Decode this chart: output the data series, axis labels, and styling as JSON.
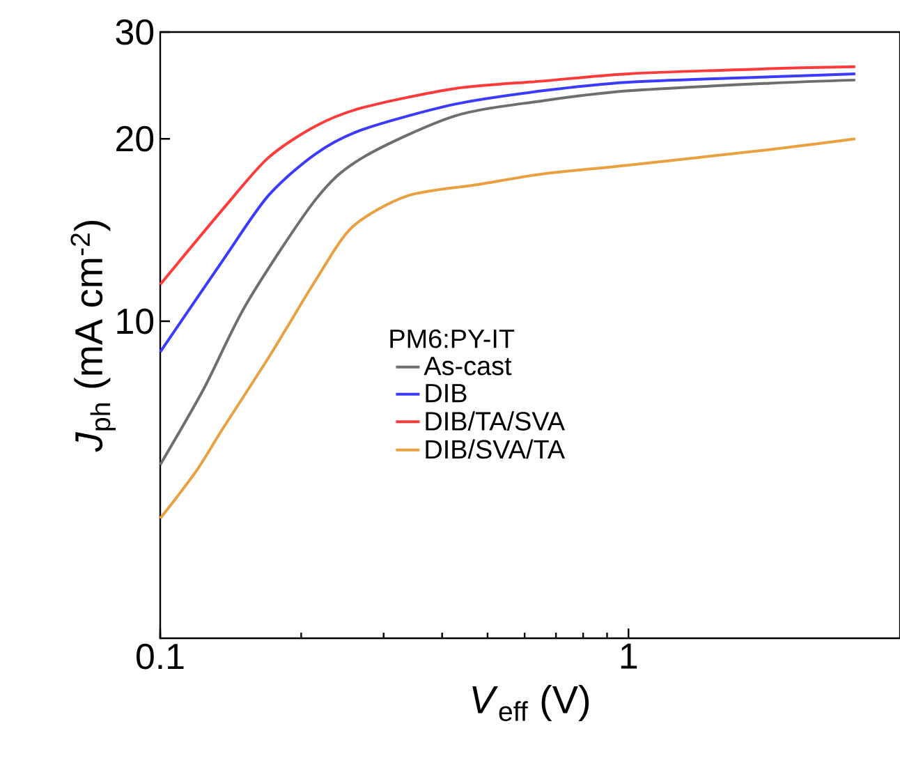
{
  "chart_data": {
    "type": "line",
    "xlabel": "*V*$_{eff}$ (V)",
    "ylabel": "*J*$_{ph}$ (mA cm$^{-2}$)",
    "legend_title": "PM6:PY-IT",
    "log": "xy",
    "xlim": [
      0.1,
      3.8
    ],
    "ylim": [
      3,
      30
    ],
    "xticks": [
      0.1,
      1
    ],
    "yticks": [
      10,
      20,
      30
    ],
    "legend": "bottom",
    "marker": "none",
    "line_style": "solid",
    "grid": false,
    "series": [
      {
        "name": "As-cast",
        "color": "#6e6e6e",
        "x": [
          0.1,
          0.124,
          0.153,
          0.215,
          0.27,
          0.425,
          0.655,
          1,
          2,
          3.05
        ],
        "values": [
          5.8,
          7.75,
          10.7,
          15.9,
          18.6,
          21.8,
          23.1,
          24.0,
          24.7,
          25.0
        ]
      },
      {
        "name": "DIB",
        "color": "#3b3bff",
        "x": [
          0.1,
          0.136,
          0.17,
          0.215,
          0.27,
          0.425,
          0.655,
          1,
          2,
          3.05
        ],
        "values": [
          8.9,
          12.6,
          16.1,
          18.9,
          20.7,
          22.8,
          24.0,
          24.8,
          25.3,
          25.6
        ]
      },
      {
        "name": "DIB/TA/SVA",
        "color": "#ff3b3b",
        "x": [
          0.1,
          0.136,
          0.17,
          0.215,
          0.27,
          0.425,
          0.655,
          1,
          2,
          3.05
        ],
        "values": [
          11.5,
          15.3,
          18.6,
          21.0,
          22.5,
          24.2,
          24.9,
          25.6,
          26.1,
          26.3
        ]
      },
      {
        "name": "DIB/SVA/TA",
        "color": "#e8a040",
        "x": [
          0.1,
          0.119,
          0.136,
          0.167,
          0.187,
          0.215,
          0.257,
          0.337,
          0.475,
          0.655,
          1,
          2,
          3.05
        ],
        "values": [
          4.73,
          5.64,
          6.65,
          8.5,
          9.8,
          11.7,
          14.3,
          16.1,
          16.8,
          17.5,
          18.1,
          19.2,
          20.0
        ]
      }
    ]
  }
}
